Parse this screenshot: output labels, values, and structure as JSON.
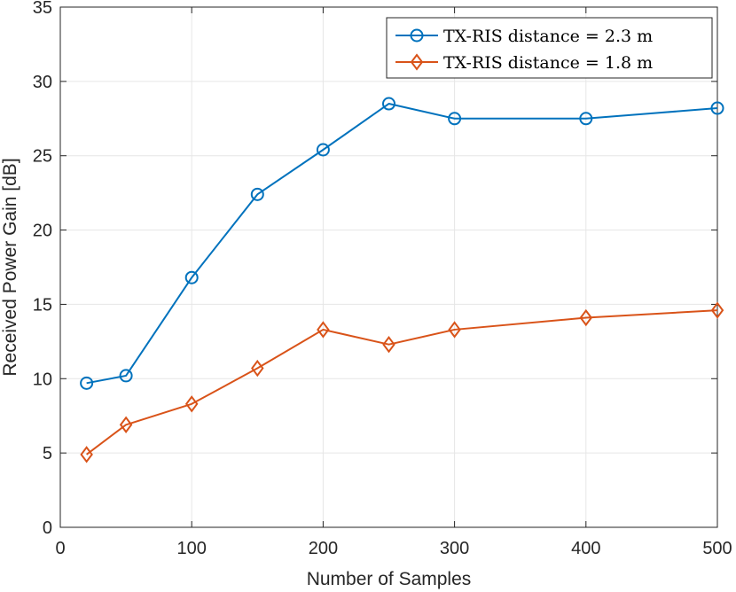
{
  "chart_data": {
    "type": "line",
    "xlabel": "Number of Samples",
    "ylabel": "Received Power Gain [dB]",
    "xlim": [
      0,
      500
    ],
    "ylim": [
      0,
      35
    ],
    "xticks": [
      0,
      100,
      200,
      300,
      400,
      500
    ],
    "yticks": [
      0,
      5,
      10,
      15,
      20,
      25,
      30,
      35
    ],
    "grid": true,
    "legend_position": "top-right",
    "series": [
      {
        "name": "TX-RIS distance = 2.3 m",
        "color": "#0072bd",
        "marker": "circle",
        "x": [
          20,
          50,
          100,
          150,
          200,
          250,
          300,
          400,
          500
        ],
        "y": [
          9.7,
          10.2,
          16.8,
          22.4,
          25.4,
          28.5,
          27.5,
          27.5,
          28.2
        ]
      },
      {
        "name": "TX-RIS distance = 1.8 m",
        "color": "#d95319",
        "marker": "diamond",
        "x": [
          20,
          50,
          100,
          150,
          200,
          250,
          300,
          400,
          500
        ],
        "y": [
          4.9,
          6.9,
          8.3,
          10.7,
          13.3,
          12.3,
          13.3,
          14.1,
          14.6
        ]
      }
    ]
  }
}
